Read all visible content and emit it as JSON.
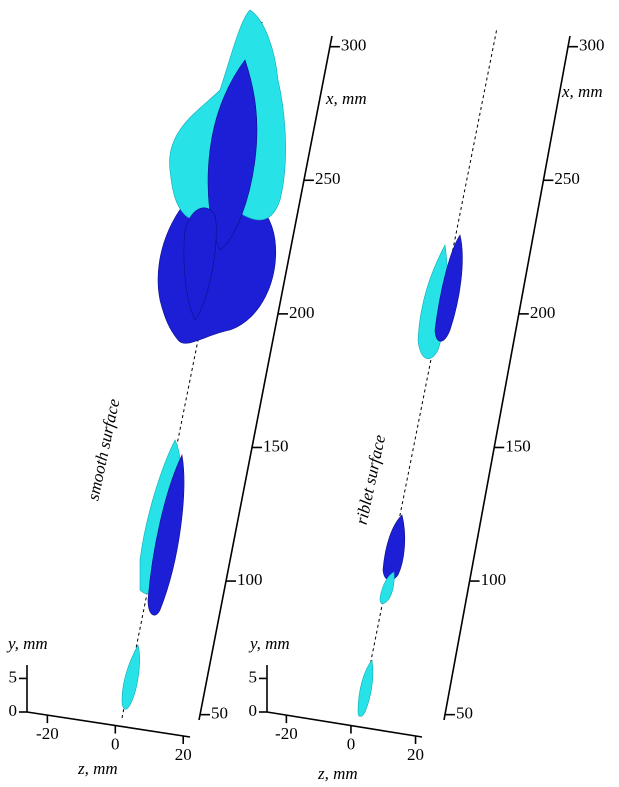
{
  "chart_data": [
    {
      "type": "isosurface3d",
      "label": "smooth surface",
      "xlabel": "x, mm",
      "ylabel": "y, mm",
      "zlabel": "z, mm",
      "xlim": [
        48,
        304
      ],
      "xticks": [
        50,
        100,
        150,
        200,
        250,
        300
      ],
      "ylim": [
        0,
        7
      ],
      "yticks": [
        0,
        5
      ],
      "zlim": [
        -26,
        22
      ],
      "zticks": [
        -20,
        0,
        20
      ]
    },
    {
      "type": "isosurface3d",
      "label": "riblet surface",
      "xlabel": "x, mm",
      "ylabel": "y, mm",
      "zlabel": "z, mm",
      "xlim": [
        48,
        304
      ],
      "xticks": [
        50,
        100,
        150,
        200,
        250,
        300
      ],
      "ylim": [
        0,
        7
      ],
      "yticks": [
        0,
        5
      ],
      "zlim": [
        -26,
        22
      ],
      "zticks": [
        -20,
        0,
        20
      ]
    }
  ]
}
